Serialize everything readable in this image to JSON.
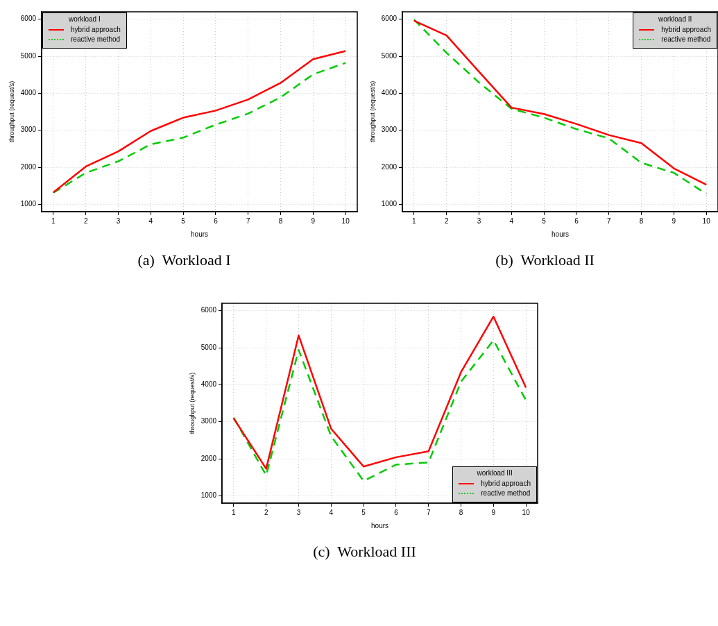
{
  "chart_data": [
    {
      "type": "line",
      "xlabel": "hours",
      "ylabel": "throughput (request/s)",
      "legend_title": "workload I",
      "legend": "top left",
      "grid": true,
      "marker": "none",
      "annotations": [
        "(a)  Workload I"
      ],
      "x": [
        1,
        2,
        3,
        4,
        5,
        6,
        7,
        8,
        9,
        10
      ],
      "xlim": [
        0.64,
        10.36
      ],
      "xticks": [
        1,
        2,
        3,
        4,
        5,
        6,
        7,
        8,
        9,
        10
      ],
      "ylim": [
        800,
        6200
      ],
      "yticks": [
        1000,
        2000,
        3000,
        4000,
        5000,
        6000
      ],
      "series": [
        {
          "name": "hybrid approach",
          "color": "#ff0000",
          "line_style": "solid",
          "values": [
            1320,
            2020,
            2430,
            2980,
            3340,
            3530,
            3830,
            4280,
            4920,
            5140
          ]
        },
        {
          "name": "reactive method",
          "color": "#00cc00",
          "line_style": "dashed",
          "values": [
            1310,
            1850,
            2160,
            2620,
            2800,
            3150,
            3450,
            3890,
            4510,
            4820
          ]
        }
      ]
    },
    {
      "type": "line",
      "xlabel": "hours",
      "ylabel": "throughput (request/s)",
      "legend_title": "workload II",
      "legend": "top right",
      "grid": true,
      "marker": "none",
      "annotations": [
        "(b)  Workload II"
      ],
      "x": [
        1,
        2,
        3,
        4,
        5,
        6,
        7,
        8,
        9,
        10
      ],
      "xlim": [
        0.64,
        10.36
      ],
      "xticks": [
        1,
        2,
        3,
        4,
        5,
        6,
        7,
        8,
        9,
        10
      ],
      "ylim": [
        800,
        6200
      ],
      "yticks": [
        1000,
        2000,
        3000,
        4000,
        5000,
        6000
      ],
      "series": [
        {
          "name": "hybrid approach",
          "color": "#ff0000",
          "line_style": "solid",
          "values": [
            5960,
            5560,
            4580,
            3610,
            3440,
            3170,
            2870,
            2650,
            1970,
            1530
          ]
        },
        {
          "name": "reactive method",
          "color": "#00cc00",
          "line_style": "dashed",
          "values": [
            5990,
            5090,
            4290,
            3580,
            3340,
            3030,
            2780,
            2120,
            1850,
            1280
          ]
        }
      ]
    },
    {
      "type": "line",
      "xlabel": "hours",
      "ylabel": "throughput (request/s)",
      "legend_title": "workload III",
      "legend": "bottom right",
      "grid": true,
      "marker": "none",
      "annotations": [
        "(c)  Workload III"
      ],
      "x": [
        1,
        2,
        3,
        4,
        5,
        6,
        7,
        8,
        9,
        10
      ],
      "xlim": [
        0.64,
        10.36
      ],
      "xticks": [
        1,
        2,
        3,
        4,
        5,
        6,
        7,
        8,
        9,
        10
      ],
      "ylim": [
        800,
        6200
      ],
      "yticks": [
        1000,
        2000,
        3000,
        4000,
        5000,
        6000
      ],
      "series": [
        {
          "name": "hybrid approach",
          "color": "#ff0000",
          "line_style": "solid",
          "values": [
            3090,
            1730,
            5330,
            2810,
            1790,
            2040,
            2200,
            4340,
            5840,
            3920
          ]
        },
        {
          "name": "reactive method",
          "color": "#00cc00",
          "line_style": "dashed",
          "values": [
            3110,
            1550,
            4940,
            2610,
            1400,
            1840,
            1900,
            4080,
            5200,
            3580
          ]
        }
      ]
    }
  ]
}
